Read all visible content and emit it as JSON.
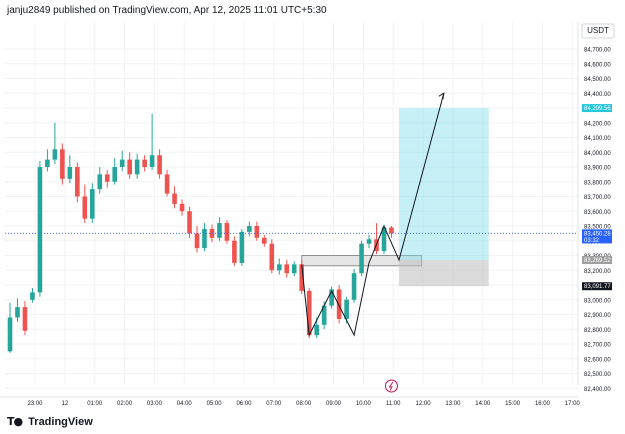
{
  "header": {
    "published": "janju2849 published on TradingView.com, Apr 12, 2025 11:01 UTC+5:30"
  },
  "currency": "USDT",
  "footer": {
    "brand": "TradingView"
  },
  "colors": {
    "up": "#26a69a",
    "down": "#ef5350",
    "last": "#2962ff",
    "target": "#80deea",
    "stop": "#bdbdbd"
  },
  "price_axis": {
    "ticks": [
      "84,700.00",
      "84,600.00",
      "84,500.00",
      "84,400.00",
      "84,300.00",
      "84,200.00",
      "84,100.00",
      "84,000.00",
      "83,900.00",
      "83,800.00",
      "83,700.00",
      "83,600.00",
      "83,500.00",
      "83,400.00",
      "83,300.00",
      "83,200.00",
      "83,100.00",
      "83,000.00",
      "82,900.00",
      "82,800.00",
      "82,700.00",
      "82,600.00",
      "82,500.00",
      "82,400.00"
    ],
    "tick_values": [
      84700,
      84600,
      84500,
      84400,
      84300,
      84200,
      84100,
      84000,
      83900,
      83800,
      83700,
      83600,
      83500,
      83400,
      83300,
      83200,
      83100,
      83000,
      82900,
      82800,
      82700,
      82600,
      82500,
      82400
    ],
    "labels": [
      {
        "text": "84,299.56",
        "value": 84299.56,
        "color": "#26c6da"
      },
      {
        "text": "83,450.28",
        "sub": "03:32",
        "value": 83450.28,
        "color": "#2962ff"
      },
      {
        "text": "83,269.52",
        "value": 83269.52,
        "color": "#9e9e9e"
      },
      {
        "text": "83,091.77",
        "value": 83091.77,
        "color": "#131722"
      }
    ]
  },
  "time_axis": {
    "labels": [
      "23:00",
      "12",
      "01:00",
      "02:00",
      "03:00",
      "04:00",
      "05:00",
      "06:00",
      "07:00",
      "08:00",
      "09:00",
      "10:00",
      "11:00",
      "12:00",
      "13:00",
      "14:00",
      "15:00",
      "16:00",
      "17:00"
    ]
  },
  "chart_data": {
    "type": "candlestick",
    "x": [
      "22:15",
      "22:30",
      "22:45",
      "23:00",
      "23:15",
      "23:30",
      "23:45",
      "00:00",
      "00:15",
      "00:30",
      "00:45",
      "01:00",
      "01:15",
      "01:30",
      "01:45",
      "02:00",
      "02:15",
      "02:30",
      "02:45",
      "03:00",
      "03:15",
      "03:30",
      "03:45",
      "04:00",
      "04:15",
      "04:30",
      "04:45",
      "05:00",
      "05:15",
      "05:30",
      "05:45",
      "06:00",
      "06:15",
      "06:30",
      "06:45",
      "07:00",
      "07:15",
      "07:30",
      "07:45",
      "08:00",
      "08:15",
      "08:30",
      "08:45",
      "09:00",
      "09:15",
      "09:30",
      "09:45",
      "10:00",
      "10:15",
      "10:30",
      "10:45",
      "11:00"
    ],
    "close": [
      82880,
      82950,
      82790,
      83050,
      83900,
      83950,
      84020,
      83820,
      83900,
      83700,
      83550,
      83750,
      83850,
      83800,
      83900,
      83950,
      83850,
      83950,
      83900,
      83980,
      83850,
      83720,
      83650,
      83600,
      83450,
      83350,
      83480,
      83420,
      83520,
      83400,
      83250,
      83460,
      83500,
      83420,
      83380,
      83200,
      83240,
      83180,
      83240,
      83060,
      82760,
      82830,
      82960,
      83070,
      82870,
      83000,
      83180,
      83380,
      83410,
      83330,
      83490,
      83450
    ],
    "open": [
      82650,
      82880,
      82950,
      83000,
      83050,
      83900,
      83950,
      84020,
      83820,
      83900,
      83700,
      83550,
      83750,
      83850,
      83800,
      83900,
      83950,
      83850,
      83950,
      83900,
      83980,
      83850,
      83720,
      83650,
      83600,
      83450,
      83350,
      83480,
      83420,
      83520,
      83400,
      83250,
      83460,
      83500,
      83420,
      83380,
      83200,
      83240,
      83180,
      83240,
      83060,
      82760,
      82830,
      82960,
      83070,
      82870,
      83000,
      83180,
      83380,
      83410,
      83330,
      83490
    ],
    "high": [
      82980,
      83010,
      82990,
      83080,
      83940,
      84020,
      84200,
      84060,
      83980,
      83930,
      83780,
      83790,
      83900,
      83880,
      83960,
      84010,
      84000,
      83990,
      83980,
      84260,
      84020,
      83880,
      83770,
      83680,
      83630,
      83500,
      83520,
      83510,
      83560,
      83540,
      83430,
      83480,
      83530,
      83530,
      83440,
      83410,
      83280,
      83270,
      83260,
      83270,
      83080,
      82880,
      82990,
      83090,
      83100,
      83020,
      83210,
      83400,
      83440,
      83520,
      83510,
      83500
    ],
    "low": [
      82640,
      82850,
      82760,
      82980,
      83020,
      83870,
      83920,
      83780,
      83790,
      83660,
      83520,
      83520,
      83720,
      83760,
      83780,
      83870,
      83820,
      83820,
      83870,
      83880,
      83820,
      83700,
      83620,
      83570,
      83420,
      83320,
      83330,
      83390,
      83400,
      83380,
      83230,
      83230,
      83430,
      83400,
      83360,
      83180,
      83170,
      83150,
      83160,
      83040,
      82740,
      82740,
      82800,
      82940,
      82840,
      82840,
      82980,
      83160,
      83350,
      83310,
      83310,
      83420
    ],
    "annotations": {
      "zone": {
        "from": 83300,
        "to": 83230,
        "start": "08:00",
        "end": "12:00"
      },
      "target": {
        "from": 83269.52,
        "to": 84299.56,
        "start": "11:15",
        "end": "14:15"
      },
      "stop": {
        "from": 83269.52,
        "to": 83091.77,
        "start": "11:15",
        "end": "14:15"
      },
      "pattern_points": [
        83240,
        82760,
        83060,
        82760,
        83250,
        83500,
        83269.52,
        84400
      ]
    }
  }
}
